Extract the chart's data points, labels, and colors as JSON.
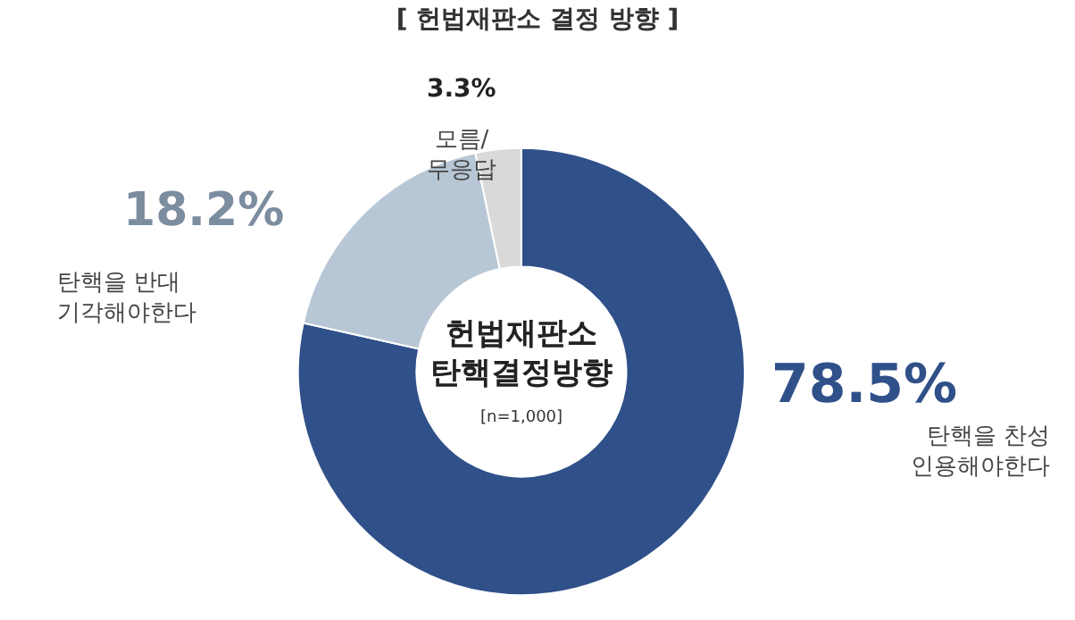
{
  "chart_data": {
    "type": "donut",
    "title": "[ 헌법재판소 결정 방향 ]",
    "categories": [
      "탄핵을 찬성\n인용해야한다",
      "탄핵을 반대\n기각해야한다",
      "모름/\n무응답"
    ],
    "values": [
      78.5,
      18.2,
      3.3
    ],
    "colors": [
      "#2f5089",
      "#b8c7d5",
      "#d9d9d9"
    ],
    "value_labels": [
      "78.5%",
      "18.2%",
      "3.3%"
    ],
    "annotations": [
      "헌법재판소\n탄핵결정방향",
      "[n=1,000]"
    ],
    "legend": false
  }
}
